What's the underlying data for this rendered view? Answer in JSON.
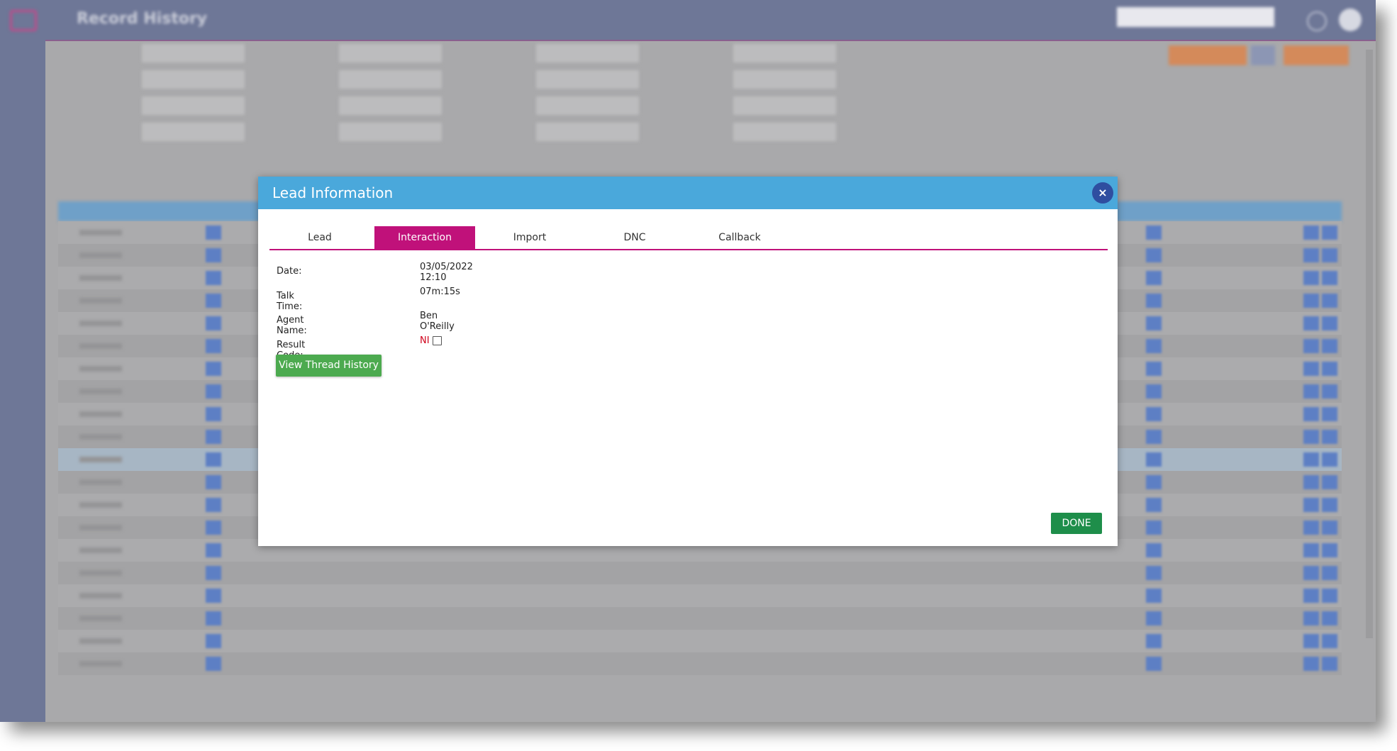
{
  "header": {
    "title": "Record History"
  },
  "modal": {
    "title": "Lead Information",
    "tabs": [
      "Lead",
      "Interaction",
      "Import",
      "DNC",
      "Callback"
    ],
    "active_tab": 1,
    "fields": [
      {
        "label": "Date:",
        "value": "03/05/2022 12:10"
      },
      {
        "label": "Talk Time:",
        "value": "07m:15s"
      },
      {
        "label": "Agent Name:",
        "value": "Ben O'Reilly"
      },
      {
        "label": "Result Code:",
        "value": "NI"
      }
    ],
    "thread_button": "View Thread History",
    "done_button": "DONE"
  }
}
